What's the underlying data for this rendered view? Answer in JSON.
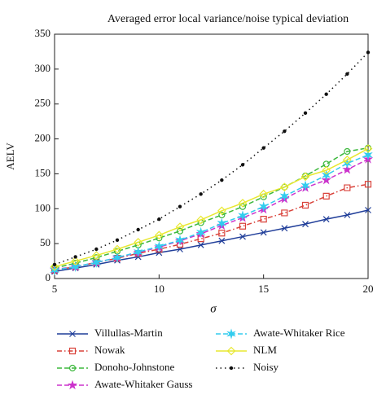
{
  "chart_data": {
    "type": "line",
    "title": "Averaged error local variance/noise typical deviation",
    "xlabel": "σ",
    "ylabel": "AELV",
    "x": [
      5,
      6,
      7,
      8,
      9,
      10,
      11,
      12,
      13,
      14,
      15,
      16,
      17,
      18,
      19,
      20
    ],
    "xlim": [
      5,
      20
    ],
    "xticks": [
      5,
      10,
      15,
      20
    ],
    "ylim": [
      0,
      350
    ],
    "yticks": [
      0,
      50,
      100,
      150,
      200,
      250,
      300,
      350
    ],
    "series": [
      {
        "name": "Villullas-Martin",
        "color": "#1f3d99",
        "marker": "x",
        "dash": "solid",
        "values": [
          10,
          15,
          20,
          26,
          31,
          37,
          42,
          48,
          54,
          60,
          66,
          72,
          78,
          85,
          91,
          98
        ]
      },
      {
        "name": "Nowak",
        "color": "#d9423a",
        "marker": "square",
        "dash": "dashdot",
        "values": [
          12,
          17,
          23,
          29,
          36,
          42,
          49,
          57,
          65,
          75,
          85,
          94,
          105,
          118,
          130,
          135
        ]
      },
      {
        "name": "Donoho-Johnstone",
        "color": "#3cb83c",
        "marker": "circle",
        "dash": "dashed",
        "values": [
          15,
          22,
          30,
          39,
          48,
          58,
          68,
          80,
          91,
          103,
          117,
          131,
          147,
          164,
          182,
          187
        ]
      },
      {
        "name": "Awate-Whitaker Gauss",
        "color": "#cc33cc",
        "marker": "star",
        "dash": "dashed",
        "values": [
          13,
          17,
          23,
          30,
          37,
          45,
          54,
          64,
          76,
          87,
          99,
          114,
          130,
          141,
          156,
          171
        ]
      },
      {
        "name": "Awate-Whitaker Rice",
        "color": "#33ccee",
        "marker": "hexstar",
        "dash": "dashed",
        "values": [
          12,
          17,
          23,
          30,
          38,
          46,
          55,
          66,
          79,
          90,
          103,
          118,
          133,
          148,
          165,
          177
        ]
      },
      {
        "name": "NLM",
        "color": "#e8e830",
        "marker": "diamond",
        "dash": "solid",
        "values": [
          17,
          25,
          33,
          42,
          52,
          62,
          74,
          84,
          97,
          108,
          121,
          131,
          146,
          155,
          170,
          186
        ]
      },
      {
        "name": "Noisy",
        "color": "#111111",
        "marker": "dot",
        "dash": "dotted",
        "values": [
          20,
          31,
          42,
          55,
          70,
          85,
          103,
          121,
          141,
          163,
          187,
          211,
          237,
          264,
          293,
          324
        ]
      }
    ]
  }
}
